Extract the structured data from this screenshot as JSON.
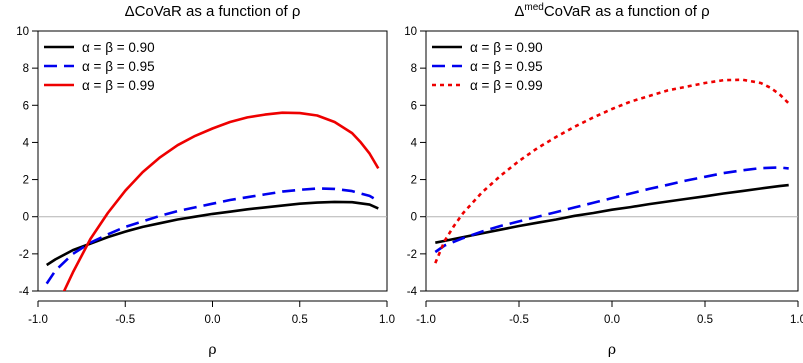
{
  "chart_data": [
    {
      "type": "line",
      "title_parts": [
        {
          "text": "ΔCoVaR as a function of ρ",
          "sup": false
        }
      ],
      "xlabel": "ρ",
      "ylabel": "",
      "xlim": [
        -1.0,
        1.0
      ],
      "ylim": [
        -4,
        10
      ],
      "xticks": [
        "-1.0",
        "-0.5",
        "0.0",
        "0.5",
        "1.0"
      ],
      "xtick_values": [
        -1.0,
        -0.5,
        0.0,
        0.5,
        1.0
      ],
      "yticks": [
        "-4",
        "-2",
        "0",
        "2",
        "4",
        "6",
        "8",
        "10"
      ],
      "ytick_values": [
        -4,
        -2,
        0,
        2,
        4,
        6,
        8,
        10
      ],
      "reference_line_y": 0,
      "legend_position": "top-left",
      "series": [
        {
          "name": "α = β = 0.90",
          "color": "#000000",
          "dash": "solid",
          "x": [
            -0.95,
            -0.9,
            -0.8,
            -0.7,
            -0.6,
            -0.5,
            -0.4,
            -0.3,
            -0.2,
            -0.1,
            0.0,
            0.1,
            0.2,
            0.3,
            0.4,
            0.5,
            0.6,
            0.7,
            0.8,
            0.9,
            0.95
          ],
          "y": [
            -2.6,
            -2.3,
            -1.8,
            -1.45,
            -1.1,
            -0.8,
            -0.55,
            -0.35,
            -0.15,
            0.0,
            0.15,
            0.27,
            0.4,
            0.5,
            0.6,
            0.7,
            0.76,
            0.8,
            0.78,
            0.65,
            0.45
          ]
        },
        {
          "name": "α = β = 0.95",
          "color": "#0000ee",
          "dash": "dashed",
          "x": [
            -0.95,
            -0.9,
            -0.8,
            -0.7,
            -0.6,
            -0.5,
            -0.4,
            -0.3,
            -0.2,
            -0.1,
            0.0,
            0.1,
            0.2,
            0.3,
            0.4,
            0.5,
            0.6,
            0.7,
            0.8,
            0.9,
            0.95
          ],
          "y": [
            -3.6,
            -2.9,
            -2.0,
            -1.4,
            -0.95,
            -0.55,
            -0.25,
            0.05,
            0.3,
            0.5,
            0.7,
            0.9,
            1.05,
            1.2,
            1.35,
            1.45,
            1.52,
            1.5,
            1.38,
            1.12,
            0.85
          ]
        },
        {
          "name": "α = β = 0.99",
          "color": "#ee0000",
          "dash": "solid",
          "x": [
            -0.88,
            -0.8,
            -0.7,
            -0.6,
            -0.5,
            -0.4,
            -0.3,
            -0.2,
            -0.1,
            0.0,
            0.1,
            0.2,
            0.3,
            0.4,
            0.5,
            0.6,
            0.7,
            0.8,
            0.85,
            0.9,
            0.95
          ],
          "y": [
            -4.6,
            -3.0,
            -1.2,
            0.2,
            1.4,
            2.4,
            3.2,
            3.85,
            4.35,
            4.75,
            5.1,
            5.35,
            5.5,
            5.6,
            5.58,
            5.45,
            5.1,
            4.5,
            4.0,
            3.4,
            2.6
          ]
        }
      ]
    },
    {
      "type": "line",
      "title_parts": [
        {
          "text": "Δ",
          "sup": false
        },
        {
          "text": "med",
          "sup": true
        },
        {
          "text": "CoVaR as a function of ρ",
          "sup": false
        }
      ],
      "xlabel": "ρ",
      "ylabel": "",
      "xlim": [
        -1.0,
        1.0
      ],
      "ylim": [
        -4,
        10
      ],
      "xticks": [
        "-1.0",
        "-0.5",
        "0.0",
        "0.5",
        "1.0"
      ],
      "xtick_values": [
        -1.0,
        -0.5,
        0.0,
        0.5,
        1.0
      ],
      "yticks": [
        "-4",
        "-2",
        "0",
        "2",
        "4",
        "6",
        "8",
        "10"
      ],
      "ytick_values": [
        -4,
        -2,
        0,
        2,
        4,
        6,
        8,
        10
      ],
      "reference_line_y": 0,
      "legend_position": "top-left",
      "series": [
        {
          "name": "α = β = 0.90",
          "color": "#000000",
          "dash": "solid",
          "x": [
            -0.95,
            -0.9,
            -0.8,
            -0.7,
            -0.6,
            -0.5,
            -0.4,
            -0.3,
            -0.2,
            -0.1,
            0.0,
            0.1,
            0.2,
            0.3,
            0.4,
            0.5,
            0.6,
            0.7,
            0.8,
            0.9,
            0.95
          ],
          "y": [
            -1.4,
            -1.3,
            -1.1,
            -0.9,
            -0.7,
            -0.5,
            -0.32,
            -0.15,
            0.05,
            0.2,
            0.38,
            0.52,
            0.68,
            0.82,
            0.96,
            1.1,
            1.25,
            1.38,
            1.52,
            1.65,
            1.7
          ]
        },
        {
          "name": "α = β = 0.95",
          "color": "#0000ee",
          "dash": "dashed",
          "x": [
            -0.95,
            -0.9,
            -0.8,
            -0.7,
            -0.6,
            -0.5,
            -0.4,
            -0.3,
            -0.2,
            -0.1,
            0.0,
            0.1,
            0.2,
            0.3,
            0.4,
            0.5,
            0.6,
            0.7,
            0.8,
            0.9,
            0.95
          ],
          "y": [
            -1.9,
            -1.55,
            -1.15,
            -0.8,
            -0.5,
            -0.25,
            0.0,
            0.25,
            0.5,
            0.75,
            1.0,
            1.25,
            1.5,
            1.72,
            1.95,
            2.15,
            2.35,
            2.5,
            2.62,
            2.65,
            2.6
          ]
        },
        {
          "name": "α = β = 0.99",
          "color": "#ee0000",
          "dash": "dotted",
          "x": [
            -0.95,
            -0.9,
            -0.85,
            -0.8,
            -0.7,
            -0.6,
            -0.5,
            -0.4,
            -0.3,
            -0.2,
            -0.1,
            0.0,
            0.1,
            0.2,
            0.3,
            0.4,
            0.5,
            0.6,
            0.7,
            0.8,
            0.85,
            0.9,
            0.95
          ],
          "y": [
            -2.5,
            -1.3,
            -0.5,
            0.2,
            1.3,
            2.2,
            3.0,
            3.7,
            4.3,
            4.85,
            5.35,
            5.8,
            6.2,
            6.5,
            6.8,
            7.0,
            7.2,
            7.35,
            7.38,
            7.2,
            6.95,
            6.6,
            6.1
          ]
        }
      ]
    }
  ]
}
